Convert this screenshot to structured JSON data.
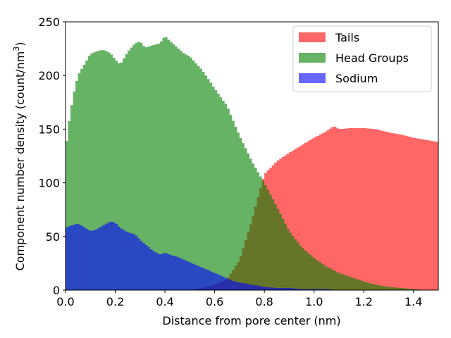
{
  "chart_data": {
    "type": "area",
    "render": "step-histogram",
    "xlabel": "Distance from pore center (nm)",
    "ylabel": "Component number density (count/nm",
    "ylabel_sup": "3",
    "ylabel_tail": ")",
    "xlim": [
      0,
      1.5
    ],
    "ylim": [
      0,
      250
    ],
    "xticks": [
      "0.0",
      "0.2",
      "0.4",
      "0.6",
      "0.8",
      "1.0",
      "1.2",
      "1.4"
    ],
    "yticks": [
      "0",
      "50",
      "100",
      "150",
      "200",
      "250"
    ],
    "legend_position": "top-right",
    "series": [
      {
        "name": "Tails",
        "color": "#ff0000",
        "alpha": 0.6,
        "x": [
          0.0,
          0.1,
          0.2,
          0.3,
          0.4,
          0.45,
          0.5,
          0.55,
          0.6,
          0.65,
          0.7,
          0.75,
          0.8,
          0.85,
          0.9,
          0.95,
          1.0,
          1.05,
          1.08,
          1.1,
          1.15,
          1.2,
          1.25,
          1.3,
          1.35,
          1.4,
          1.45,
          1.5
        ],
        "values": [
          0,
          0,
          0,
          0,
          0,
          0,
          0,
          2,
          5,
          10,
          28,
          65,
          108,
          120,
          128,
          135,
          142,
          148,
          153,
          150,
          151,
          151,
          150,
          147,
          145,
          142,
          140,
          138
        ]
      },
      {
        "name": "Head Groups",
        "color": "#008000",
        "alpha": 0.6,
        "x": [
          0.0,
          0.01,
          0.03,
          0.05,
          0.08,
          0.1,
          0.12,
          0.15,
          0.18,
          0.2,
          0.22,
          0.25,
          0.28,
          0.3,
          0.32,
          0.35,
          0.38,
          0.4,
          0.42,
          0.45,
          0.48,
          0.5,
          0.53,
          0.55,
          0.58,
          0.6,
          0.63,
          0.65,
          0.68,
          0.7,
          0.73,
          0.75,
          0.78,
          0.8,
          0.85,
          0.9,
          0.95,
          1.0,
          1.05,
          1.1,
          1.15,
          1.2,
          1.25,
          1.3,
          1.35,
          1.4,
          1.45,
          1.5
        ],
        "values": [
          128,
          150,
          180,
          200,
          212,
          220,
          222,
          224,
          221,
          215,
          210,
          222,
          230,
          232,
          226,
          228,
          230,
          237,
          232,
          226,
          220,
          218,
          210,
          205,
          195,
          188,
          178,
          172,
          155,
          144,
          130,
          120,
          108,
          100,
          78,
          55,
          40,
          30,
          22,
          16,
          12,
          8,
          5,
          3,
          2,
          1,
          0,
          0
        ]
      },
      {
        "name": "Sodium",
        "color": "#0000ff",
        "alpha": 0.6,
        "x": [
          0.0,
          0.02,
          0.05,
          0.08,
          0.1,
          0.12,
          0.15,
          0.18,
          0.2,
          0.22,
          0.25,
          0.28,
          0.3,
          0.32,
          0.35,
          0.38,
          0.4,
          0.42,
          0.45,
          0.48,
          0.5,
          0.52,
          0.55,
          0.58,
          0.6,
          0.63,
          0.65,
          0.68,
          0.7,
          0.73,
          0.75,
          0.78,
          0.8,
          0.85,
          0.9,
          0.95,
          1.0,
          1.05,
          1.1,
          1.2,
          1.3,
          1.4,
          1.5
        ],
        "values": [
          58,
          60,
          62,
          58,
          55,
          56,
          60,
          64,
          63,
          58,
          54,
          52,
          47,
          43,
          37,
          33,
          35,
          33,
          31,
          28,
          26,
          24,
          21,
          18,
          16,
          13,
          11,
          8,
          7,
          6,
          5,
          4,
          3,
          2,
          2,
          1,
          1,
          1,
          0,
          0,
          0,
          0,
          0
        ]
      }
    ]
  }
}
